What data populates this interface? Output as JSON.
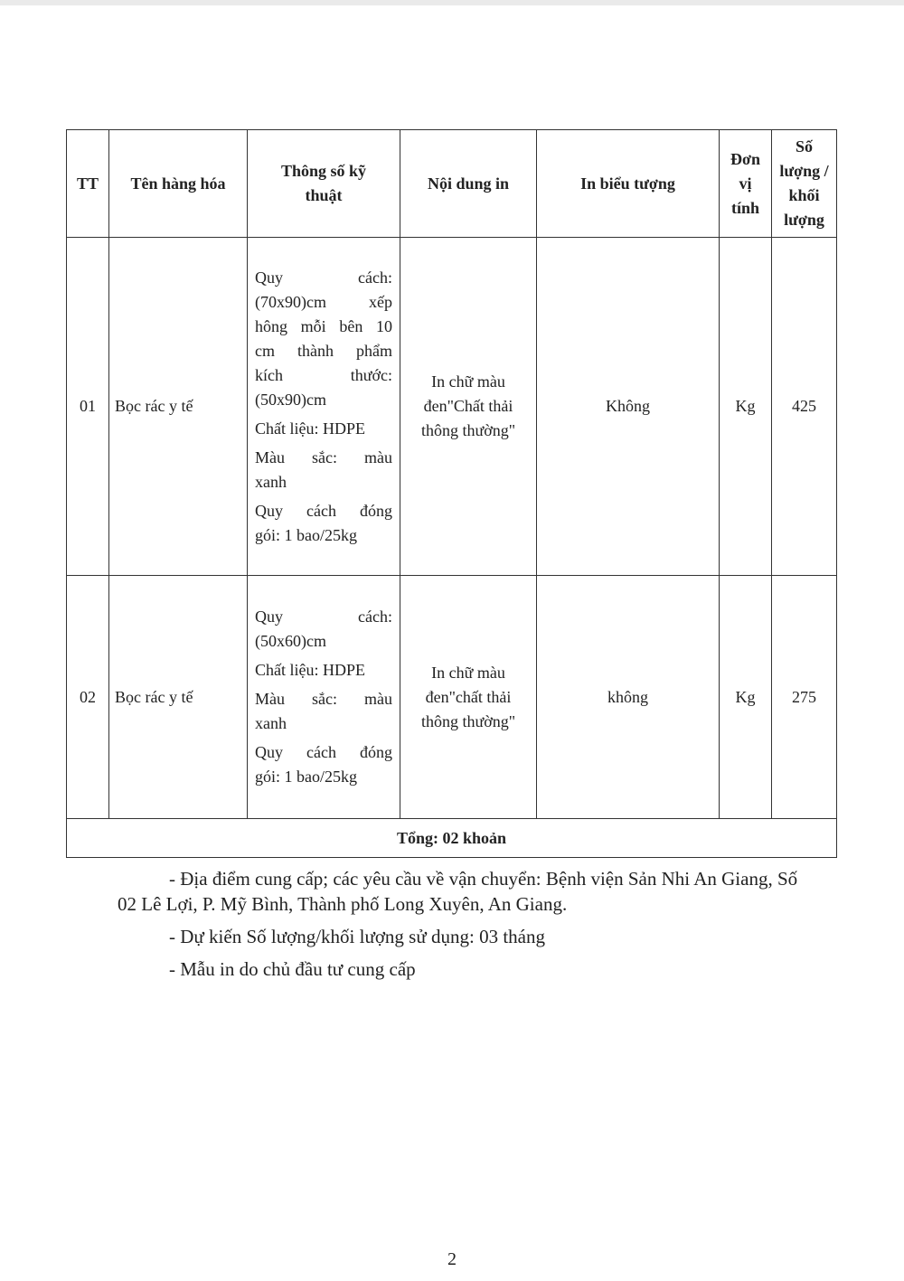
{
  "table": {
    "headers": [
      "TT",
      "Tên hàng hóa",
      "Thông số kỹ thuật",
      "Nội dung in",
      "In biểu tượng",
      "Đơn vị tính",
      "Số lượng / khối lượng"
    ],
    "rows": [
      {
        "tt": "01",
        "name": "Bọc rác y tế",
        "spec": [
          [
            "Quy cách:",
            "(70x90)cm xếp",
            "hông mỗi bên 10",
            "cm thành phẩm",
            "kích thước:",
            "(50x90)cm"
          ],
          [
            "Chất liệu: HDPE"
          ],
          [
            "Màu sắc: màu",
            "xanh"
          ],
          [
            "Quy cách đóng",
            "gói: 1 bao/25kg"
          ]
        ],
        "print_content": "In chữ màu đen\"Chất thải thông thường\"",
        "logo": "Không",
        "unit": "Kg",
        "quantity": "425"
      },
      {
        "tt": "02",
        "name": "Bọc rác y tế",
        "spec": [
          [
            "Quy cách:",
            "(50x60)cm"
          ],
          [
            "Chất liệu: HDPE"
          ],
          [
            "Màu sắc: màu",
            "xanh"
          ],
          [
            "Quy cách đóng",
            "gói: 1 bao/25kg"
          ]
        ],
        "print_content": "In chữ màu đen\"chất thải thông thường\"",
        "logo": "không",
        "unit": "Kg",
        "quantity": "275"
      }
    ],
    "total": "Tổng: 02 khoản"
  },
  "notes": [
    "- Địa điểm cung cấp; các yêu cầu về vận chuyển: Bệnh viện Sản Nhi An Giang, Số 02 Lê Lợi, P. Mỹ Bình, Thành phố Long Xuyên, An Giang.",
    "- Dự kiến Số lượng/khối lượng sử dụng: 03 tháng",
    "- Mẫu in do chủ đầu tư cung cấp"
  ],
  "page_number": "2"
}
